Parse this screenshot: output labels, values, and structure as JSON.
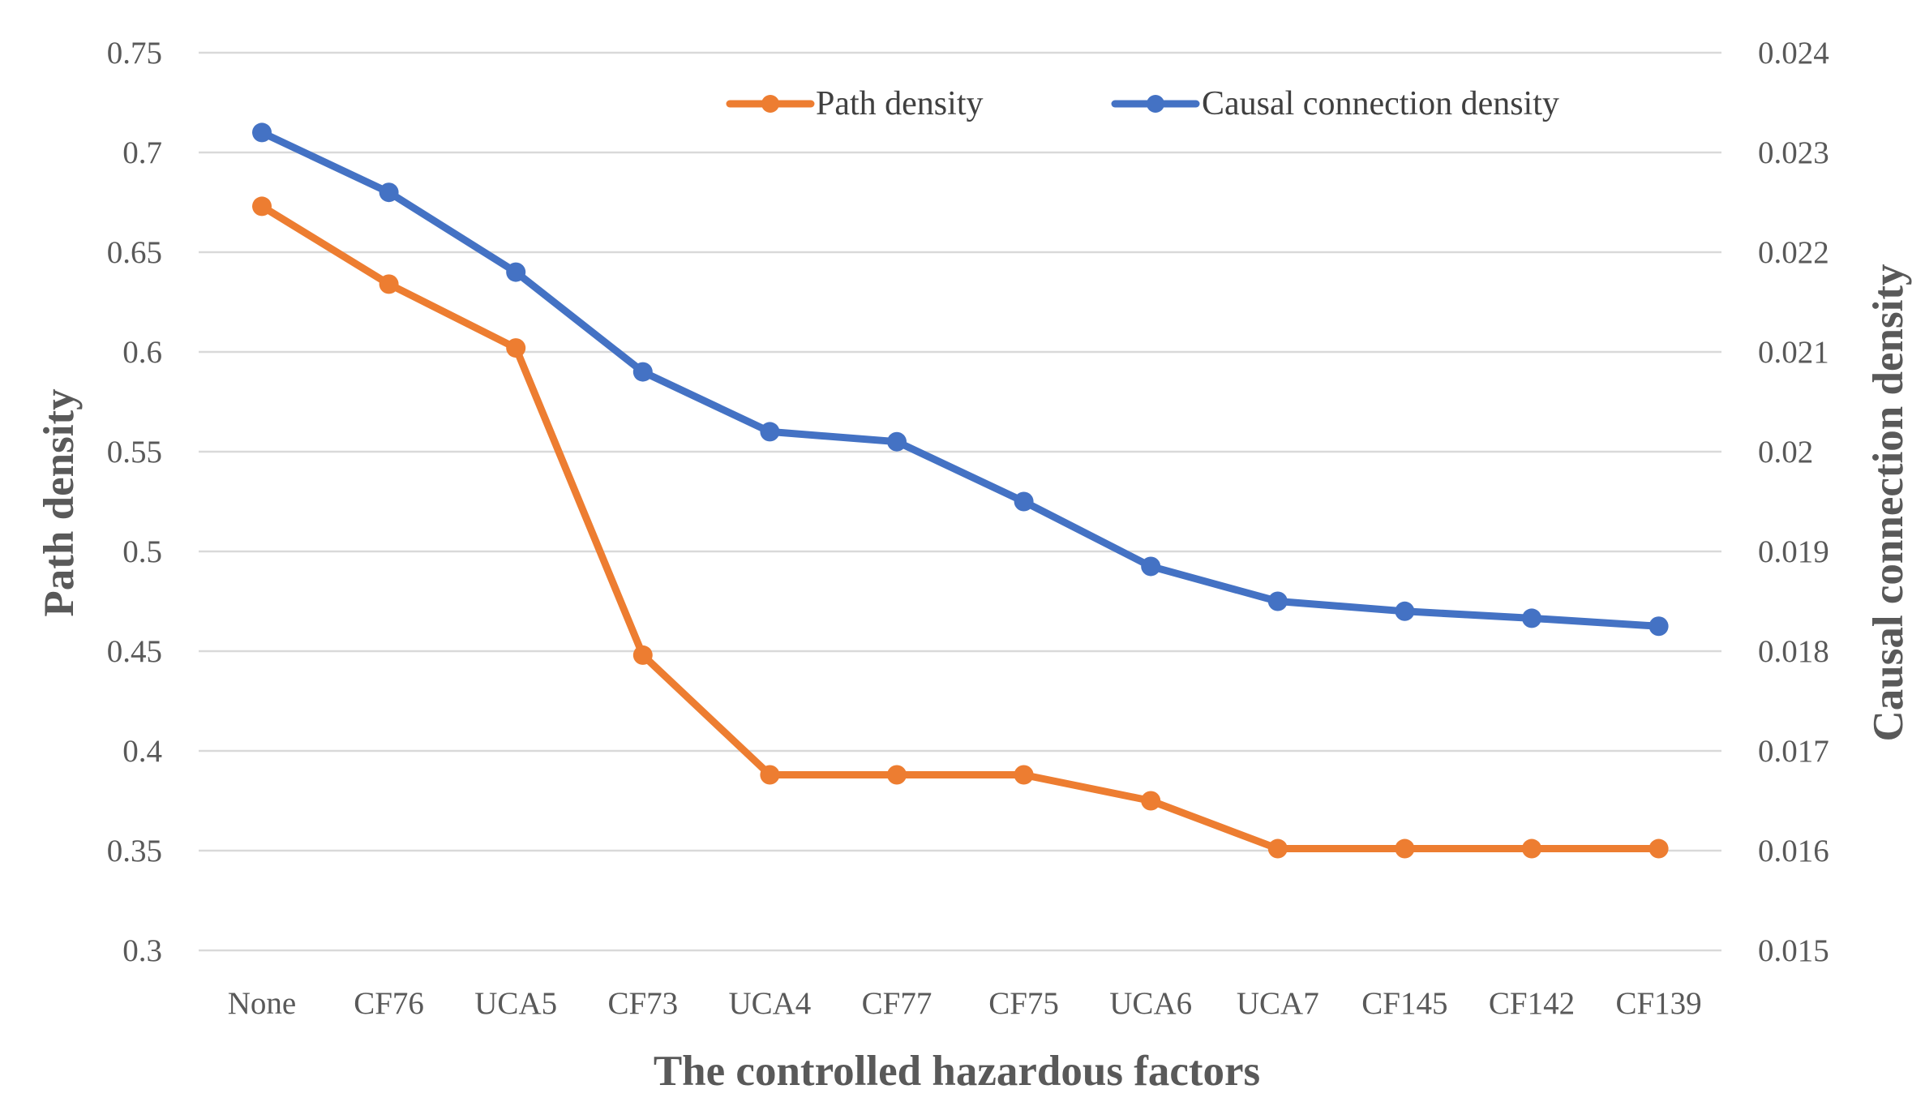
{
  "chart_data": {
    "type": "line",
    "title": "",
    "xlabel": "The controlled hazardous factors",
    "ylabel": "Path density",
    "y2label": "Causal connection density",
    "categories": [
      "None",
      "CF76",
      "UCA5",
      "CF73",
      "UCA4",
      "CF77",
      "CF75",
      "UCA6",
      "UCA7",
      "CF145",
      "CF142",
      "CF139"
    ],
    "ylim": [
      0.3,
      0.75
    ],
    "y2lim": [
      0.015,
      0.024
    ],
    "yticks": [
      "0.3",
      "0.35",
      "0.4",
      "0.45",
      "0.5",
      "0.55",
      "0.6",
      "0.65",
      "0.7",
      "0.75"
    ],
    "y2ticks": [
      "0.015",
      "0.016",
      "0.017",
      "0.018",
      "0.019",
      "0.02",
      "0.021",
      "0.022",
      "0.023",
      "0.024"
    ],
    "grid": true,
    "legend_position": "top",
    "series": [
      {
        "name": "Path density",
        "axis": "left",
        "color": "#ED7D31",
        "values": [
          0.673,
          0.634,
          0.602,
          0.448,
          0.388,
          0.388,
          0.388,
          0.375,
          0.351,
          0.351,
          0.351,
          0.351
        ]
      },
      {
        "name": "Causal connection density",
        "axis": "right",
        "color": "#4472C4",
        "values": [
          0.0232,
          0.0226,
          0.0218,
          0.0208,
          0.0202,
          0.0201,
          0.0195,
          0.01885,
          0.0185,
          0.0184,
          0.01833,
          0.01825
        ]
      }
    ]
  }
}
